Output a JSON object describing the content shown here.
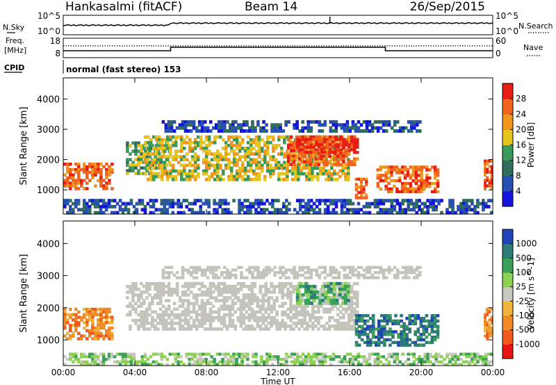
{
  "header": {
    "station": "Hankasalmi (fitACF)",
    "beam": "Beam 14",
    "date": "26/Sep/2015"
  },
  "top_panels": {
    "nsky_label": "N.Sky",
    "nsky_ticks": [
      "10^5",
      "10^0"
    ],
    "nsearch_label": "N.Search",
    "nsearch_ticks": [
      "10^5",
      "10^0"
    ],
    "freq_label_1": "Freq.",
    "freq_label_2": "[MHz]",
    "freq_ticks": [
      "18",
      "8"
    ],
    "nave_label": "Nave",
    "nave_ticks": [
      "60",
      "0"
    ],
    "cpid_label": "CPID",
    "cpid_text": "normal (fast stereo) 153"
  },
  "x_axis": {
    "label": "Time UT",
    "ticks": [
      "00:00",
      "04:00",
      "08:00",
      "12:00",
      "16:00",
      "20:00",
      "00:00"
    ]
  },
  "colors": {
    "power": [
      "#1414dc",
      "#2850b4",
      "#2f6e5a",
      "#3a9a5a",
      "#e6c41e",
      "#f0961e",
      "#f0641e",
      "#e61e14"
    ],
    "velocity": [
      "#e61414",
      "#f05a1e",
      "#f08c28",
      "#f0b43c",
      "#c8c8c0",
      "#8cd250",
      "#3aa05a",
      "#2d7a78",
      "#1e46b4"
    ],
    "ground": "#c4c4bc"
  },
  "chart_data": [
    {
      "type": "heatmap",
      "name": "power-panel",
      "ylabel": "Slant Range [km]",
      "yticks": [
        1000,
        2000,
        3000,
        4000
      ],
      "ylim": [
        200,
        4700
      ],
      "xlim_hours": [
        0,
        24
      ],
      "colorbar_label": "Power [dB]",
      "colorbar_ticks": [
        "4",
        "8",
        "12",
        "16",
        "20",
        "24",
        "28"
      ],
      "regions": [
        {
          "t": [
            0.0,
            2.8
          ],
          "r": [
            1000,
            1900
          ],
          "level": 6
        },
        {
          "t": [
            3.5,
            6.0
          ],
          "r": [
            1500,
            2600
          ],
          "level": 3
        },
        {
          "t": [
            4.5,
            16.0
          ],
          "r": [
            1300,
            2800
          ],
          "level": 4
        },
        {
          "t": [
            12.5,
            16.5
          ],
          "r": [
            1800,
            2800
          ],
          "level": 6
        },
        {
          "t": [
            13.0,
            16.5
          ],
          "r": [
            2200,
            2800
          ],
          "level": 7
        },
        {
          "t": [
            16.3,
            17.0
          ],
          "r": [
            700,
            1400
          ],
          "level": 6
        },
        {
          "t": [
            17.5,
            21.0
          ],
          "r": [
            900,
            1800
          ],
          "level": 6
        },
        {
          "t": [
            23.5,
            24.0
          ],
          "r": [
            1000,
            2000
          ],
          "level": 6
        },
        {
          "t": [
            5.5,
            20.0
          ],
          "r": [
            2900,
            3300
          ],
          "level": 1
        },
        {
          "t": [
            0.0,
            24.0
          ],
          "r": [
            200,
            700
          ],
          "level": 1
        }
      ]
    },
    {
      "type": "heatmap",
      "name": "velocity-panel",
      "ylabel": "Slant Range [km]",
      "yticks": [
        1000,
        2000,
        3000,
        4000
      ],
      "ylim": [
        200,
        4700
      ],
      "xlim_hours": [
        0,
        24
      ],
      "colorbar_label": "Velocity [m s^-1]",
      "colorbar_ticks": [
        "1000",
        "500",
        "100",
        "25",
        "-25",
        "-100",
        "-500",
        "-1000"
      ],
      "regions": [
        {
          "t": [
            0.0,
            2.8
          ],
          "r": [
            1000,
            2000
          ],
          "level": 2
        },
        {
          "t": [
            3.5,
            16.5
          ],
          "r": [
            1300,
            2800
          ],
          "level": 4
        },
        {
          "t": [
            13.0,
            16.0
          ],
          "r": [
            2100,
            2800
          ],
          "level": 6
        },
        {
          "t": [
            16.3,
            21.0
          ],
          "r": [
            800,
            1800
          ],
          "level": 7
        },
        {
          "t": [
            23.5,
            24.0
          ],
          "r": [
            1000,
            2000
          ],
          "level": 2
        },
        {
          "t": [
            5.5,
            20.0
          ],
          "r": [
            2900,
            3300
          ],
          "level": 4
        },
        {
          "t": [
            0.0,
            24.0
          ],
          "r": [
            200,
            600
          ],
          "level": 5
        }
      ]
    }
  ]
}
